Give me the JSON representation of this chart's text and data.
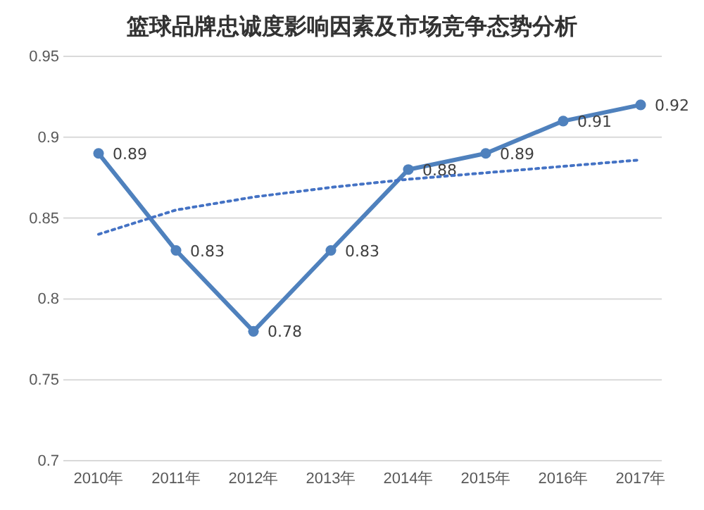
{
  "chart_data": {
    "type": "line",
    "title": "篮球品牌忠诚度影响因素及市场竞争态势分析",
    "categories": [
      "2010年",
      "2011年",
      "2012年",
      "2013年",
      "2014年",
      "2015年",
      "2016年",
      "2017年"
    ],
    "series": [
      {
        "color": "#4f81bd",
        "values": [
          0.89,
          0.83,
          0.78,
          0.83,
          0.88,
          0.89,
          0.91,
          0.92
        ],
        "value_labels": [
          "0.89",
          "0.83",
          "0.78",
          "0.83",
          "0.88",
          "0.89",
          "0.91",
          "0.92"
        ],
        "marker": "circle",
        "line_style": "solid"
      },
      {
        "color": "#4472c4",
        "values": [
          0.84,
          0.855,
          0.863,
          0.869,
          0.874,
          0.878,
          0.882,
          0.886
        ],
        "marker": "none",
        "line_style": "dotted"
      }
    ],
    "ylim": [
      0.7,
      0.95
    ],
    "yticks": [
      0.7,
      0.75,
      0.8,
      0.85,
      0.9,
      0.95
    ],
    "grid": "y"
  }
}
